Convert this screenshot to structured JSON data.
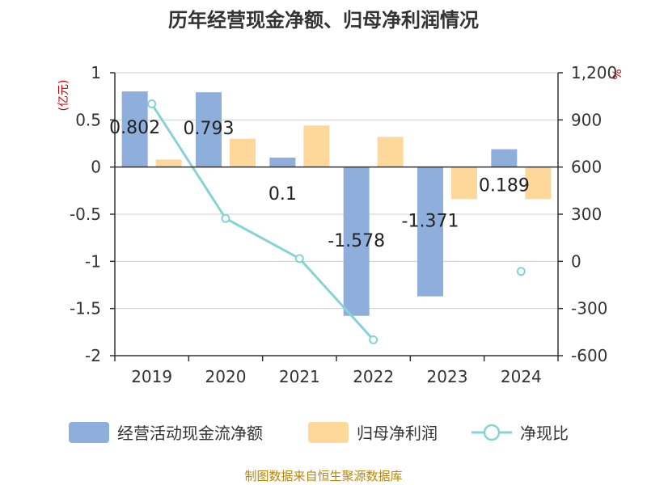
{
  "chart_data": {
    "type": "bar",
    "title": "历年经营现金净额、归母净利润情况",
    "categories": [
      "2019",
      "2020",
      "2021",
      "2022",
      "2023",
      "2024"
    ],
    "left_axis": {
      "unit": "(亿元)",
      "ylim": [
        -2,
        1
      ],
      "ticks": [
        "1",
        "0.5",
        "0",
        "-0.5",
        "-1",
        "-1.5",
        "-2"
      ]
    },
    "right_axis": {
      "unit": "%",
      "ylim": [
        -600,
        1200
      ],
      "ticks": [
        "1,200",
        "900",
        "600",
        "300",
        "0",
        "-300",
        "-600"
      ]
    },
    "series": [
      {
        "name": "经营活动现金流净额",
        "type": "bar",
        "axis": "left",
        "color": "#8eaedc",
        "values": [
          0.802,
          0.793,
          0.1,
          -1.578,
          -1.371,
          0.189
        ],
        "labels": [
          "0.802",
          "0.793",
          "0.1",
          "-1.578",
          "-1.371",
          "0.189"
        ]
      },
      {
        "name": "归母净利润",
        "type": "bar",
        "axis": "left",
        "color": "#fdd89a",
        "values": [
          0.08,
          0.3,
          0.44,
          0.32,
          -0.34,
          -0.34
        ]
      },
      {
        "name": "净现比",
        "type": "line",
        "axis": "right",
        "color": "#86d3d6",
        "values": [
          1002,
          273,
          18,
          -499,
          null,
          -64
        ]
      }
    ],
    "legend_position": "bottom",
    "grid": true
  },
  "source": "制图数据来自恒生聚源数据库"
}
